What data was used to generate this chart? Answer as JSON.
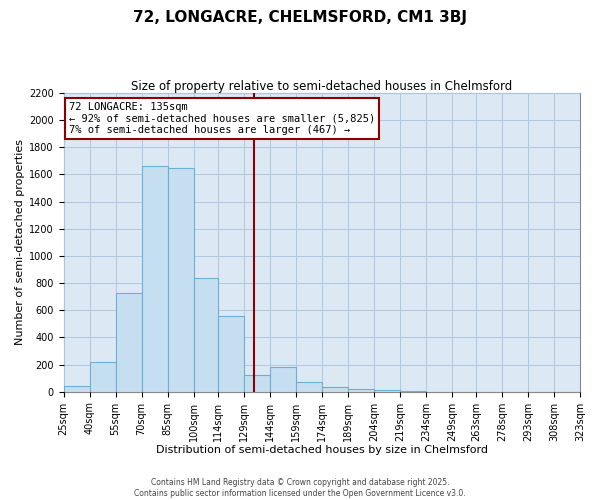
{
  "title": "72, LONGACRE, CHELMSFORD, CM1 3BJ",
  "subtitle": "Size of property relative to semi-detached houses in Chelmsford",
  "xlabel": "Distribution of semi-detached houses by size in Chelmsford",
  "ylabel": "Number of semi-detached properties",
  "bin_labels": [
    "25sqm",
    "40sqm",
    "55sqm",
    "70sqm",
    "85sqm",
    "100sqm",
    "114sqm",
    "129sqm",
    "144sqm",
    "159sqm",
    "174sqm",
    "189sqm",
    "204sqm",
    "219sqm",
    "234sqm",
    "249sqm",
    "263sqm",
    "278sqm",
    "293sqm",
    "308sqm",
    "323sqm"
  ],
  "bin_edges": [
    25,
    40,
    55,
    70,
    85,
    100,
    114,
    129,
    144,
    159,
    174,
    189,
    204,
    219,
    234,
    249,
    263,
    278,
    293,
    308,
    323
  ],
  "bar_heights": [
    40,
    220,
    725,
    1665,
    1650,
    840,
    555,
    120,
    180,
    70,
    35,
    20,
    10,
    5,
    0,
    0,
    0,
    0,
    0,
    0
  ],
  "bar_color": "#c5dff0",
  "bar_edge_color": "#6aafd6",
  "vline_x": 135,
  "vline_color": "#8b0000",
  "ylim": [
    0,
    2200
  ],
  "yticks": [
    0,
    200,
    400,
    600,
    800,
    1000,
    1200,
    1400,
    1600,
    1800,
    2000,
    2200
  ],
  "annotation_title": "72 LONGACRE: 135sqm",
  "annotation_line1": "← 92% of semi-detached houses are smaller (5,825)",
  "annotation_line2": "7% of semi-detached houses are larger (467) →",
  "annotation_box_color": "#ffffff",
  "annotation_box_edge": "#8b0000",
  "footnote1": "Contains HM Land Registry data © Crown copyright and database right 2025.",
  "footnote2": "Contains public sector information licensed under the Open Government Licence v3.0.",
  "bg_color": "#ffffff",
  "plot_bg_color": "#dce9f5",
  "grid_color": "#b0c8e0",
  "title_fontsize": 11,
  "subtitle_fontsize": 8.5,
  "axis_label_fontsize": 8,
  "tick_fontsize": 7
}
